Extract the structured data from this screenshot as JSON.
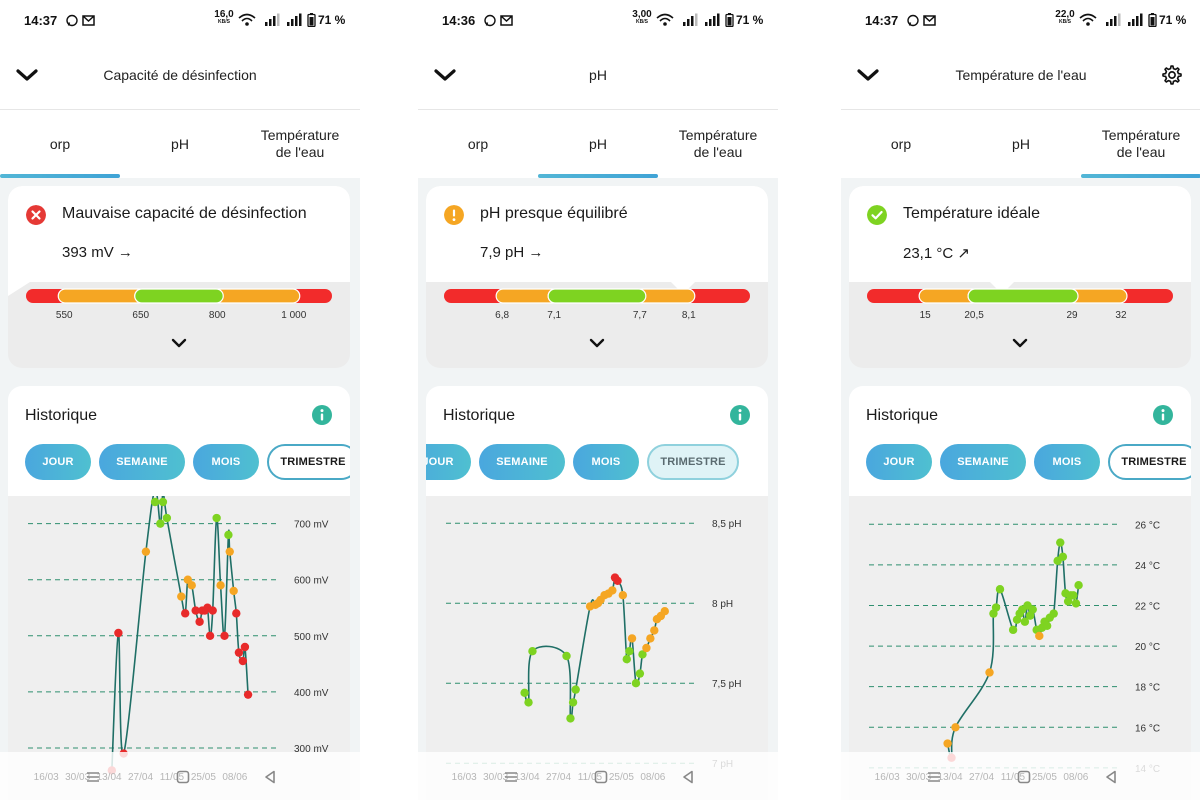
{
  "screens": [
    {
      "id": "orp",
      "status_bar": {
        "time": "14:37",
        "speed_value": "16,0",
        "speed_unit": "KB/S",
        "battery": "71 %"
      },
      "header": {
        "title": "Capacité de désinfection",
        "has_settings": false
      },
      "tabs": [
        {
          "label": "orp"
        },
        {
          "label": "pH"
        },
        {
          "label": "Température de l'eau"
        }
      ],
      "active_tab": 0,
      "status": {
        "level": "bad",
        "icon": "error-circle-icon",
        "color": "#e53935",
        "title": "Mauvaise capacité de désinfection",
        "value": "393 mV →",
        "pointer_pos": 0.0,
        "gauge": {
          "segments": [
            {
              "color": "#f22b2b",
              "w": 0.125
            },
            {
              "color": "#f5a623",
              "w": 0.25
            },
            {
              "color": "#7ed321",
              "w": 0.25
            },
            {
              "color": "#f5a623",
              "w": 0.25
            },
            {
              "color": "#f22b2b",
              "w": 0.125
            }
          ],
          "labels": [
            {
              "text": "550",
              "pos": 0.125
            },
            {
              "text": "650",
              "pos": 0.375
            },
            {
              "text": "800",
              "pos": 0.625
            },
            {
              "text": "1 000",
              "pos": 0.875
            }
          ]
        }
      },
      "history": {
        "title": "Historique",
        "pills": [
          {
            "label": "JOUR"
          },
          {
            "label": "SEMAINE"
          },
          {
            "label": "MOIS"
          },
          {
            "label": "TRIMESTRE"
          }
        ],
        "active_pill": 3,
        "active_style": "active",
        "pill_offset": 0
      },
      "chart_data": {
        "type": "scatter",
        "y_unit": "mV",
        "y_ticks": [
          {
            "v": 300,
            "label": "300 mV"
          },
          {
            "v": 400,
            "label": "400 mV"
          },
          {
            "v": 500,
            "label": "500 mV"
          },
          {
            "v": 600,
            "label": "600 mV"
          },
          {
            "v": 700,
            "label": "700 mV"
          }
        ],
        "ylim": [
          250,
          735
        ],
        "xlim": [
          0,
          100
        ],
        "x_ticks": [
          {
            "x": 10,
            "label": "16/03"
          },
          {
            "x": 22,
            "label": "30/03"
          },
          {
            "x": 34,
            "label": "13/04"
          },
          {
            "x": 46,
            "label": "27/04"
          },
          {
            "x": 58,
            "label": "11/05"
          },
          {
            "x": 70,
            "label": "25/05"
          },
          {
            "x": 82,
            "label": "08/06"
          }
        ],
        "thresholds": [
          {
            "max": 550,
            "color": "#e82a2a"
          },
          {
            "max": 650,
            "color": "#f5a623"
          },
          {
            "max": 800,
            "color": "#7ed321"
          }
        ],
        "points": [
          [
            32,
            260
          ],
          [
            34.5,
            505
          ],
          [
            36.5,
            290
          ],
          [
            45,
            650
          ],
          [
            48.5,
            760
          ],
          [
            50.5,
            700
          ],
          [
            51.5,
            755
          ],
          [
            53,
            710
          ],
          [
            58.5,
            570
          ],
          [
            60,
            540
          ],
          [
            61,
            600
          ],
          [
            62.5,
            590
          ],
          [
            64,
            545
          ],
          [
            65.5,
            525
          ],
          [
            66.5,
            545
          ],
          [
            67.5,
            545
          ],
          [
            68.5,
            550
          ],
          [
            69.5,
            500
          ],
          [
            70.5,
            545
          ],
          [
            72,
            710
          ],
          [
            73.5,
            590
          ],
          [
            75,
            500
          ],
          [
            76.5,
            680
          ],
          [
            77,
            650
          ],
          [
            78.5,
            580
          ],
          [
            79.5,
            540
          ],
          [
            80.5,
            470
          ],
          [
            82,
            455
          ],
          [
            82.8,
            480
          ],
          [
            84,
            395
          ]
        ]
      }
    },
    {
      "id": "ph",
      "status_bar": {
        "time": "14:36",
        "speed_value": "3,00",
        "speed_unit": "KB/S",
        "battery": "71 %"
      },
      "header": {
        "title": "pH",
        "has_settings": false
      },
      "tabs": [
        {
          "label": "orp"
        },
        {
          "label": "pH"
        },
        {
          "label": "Température de l'eau"
        }
      ],
      "active_tab": 1,
      "status": {
        "level": "warning",
        "icon": "warning-circle-icon",
        "color": "#f5a623",
        "title": "pH presque équilibré",
        "value": "7,9 pH →",
        "pointer_pos": 0.78,
        "gauge": {
          "segments": [
            {
              "color": "#f22b2b",
              "w": 0.19
            },
            {
              "color": "#f5a623",
              "w": 0.17
            },
            {
              "color": "#7ed321",
              "w": 0.28
            },
            {
              "color": "#f5a623",
              "w": 0.16
            },
            {
              "color": "#f22b2b",
              "w": 0.2
            }
          ],
          "labels": [
            {
              "text": "6,8",
              "pos": 0.19
            },
            {
              "text": "7,1",
              "pos": 0.36
            },
            {
              "text": "7,7",
              "pos": 0.64
            },
            {
              "text": "8,1",
              "pos": 0.8
            }
          ]
        }
      },
      "history": {
        "title": "Historique",
        "pills": [
          {
            "label": "JOUR"
          },
          {
            "label": "SEMAINE"
          },
          {
            "label": "MOIS"
          },
          {
            "label": "TRIMESTRE"
          }
        ],
        "active_pill": 3,
        "active_style": "active-faded",
        "pill_offset": -38
      },
      "chart_data": {
        "type": "scatter",
        "y_unit": "pH",
        "y_ticks": [
          {
            "v": 7.0,
            "label": "7 pH"
          },
          {
            "v": 7.5,
            "label": "7,5 pH"
          },
          {
            "v": 8.0,
            "label": "8 pH"
          },
          {
            "v": 8.5,
            "label": "8,5 pH"
          }
        ],
        "ylim": [
          6.92,
          8.62
        ],
        "xlim": [
          0,
          100
        ],
        "x_ticks": [
          {
            "x": 10,
            "label": "16/03"
          },
          {
            "x": 22,
            "label": "30/03"
          },
          {
            "x": 34,
            "label": "13/04"
          },
          {
            "x": 46,
            "label": "27/04"
          },
          {
            "x": 58,
            "label": "11/05"
          },
          {
            "x": 70,
            "label": "25/05"
          },
          {
            "x": 82,
            "label": "08/06"
          }
        ],
        "thresholds": [
          {
            "max": 7.1,
            "color": "#f5a623"
          },
          {
            "max": 7.7,
            "color": "#7ed321"
          },
          {
            "max": 8.1,
            "color": "#f5a623"
          },
          {
            "max": 99,
            "color": "#e82a2a"
          }
        ],
        "points": [
          [
            30,
            7.44
          ],
          [
            31.5,
            7.38
          ],
          [
            33,
            7.7
          ],
          [
            46,
            7.67
          ],
          [
            47.5,
            7.28
          ],
          [
            48.5,
            7.38
          ],
          [
            49.5,
            7.46
          ],
          [
            55,
            7.98
          ],
          [
            57,
            7.99
          ],
          [
            58,
            8.0
          ],
          [
            59,
            8.02
          ],
          [
            60.5,
            8.05
          ],
          [
            62,
            8.06
          ],
          [
            63.5,
            8.08
          ],
          [
            64.5,
            8.16
          ],
          [
            65.5,
            8.14
          ],
          [
            67.5,
            8.05
          ],
          [
            69,
            7.65
          ],
          [
            70,
            7.7
          ],
          [
            71,
            7.78
          ],
          [
            72.5,
            7.5
          ],
          [
            74,
            7.56
          ],
          [
            75,
            7.68
          ],
          [
            76.5,
            7.72
          ],
          [
            78,
            7.78
          ],
          [
            79.5,
            7.83
          ],
          [
            80.5,
            7.9
          ],
          [
            82,
            7.92
          ],
          [
            83.5,
            7.95
          ]
        ]
      }
    },
    {
      "id": "temp",
      "status_bar": {
        "time": "14:37",
        "speed_value": "22,0",
        "speed_unit": "KB/S",
        "battery": "71 %"
      },
      "header": {
        "title": "Température de l'eau",
        "has_settings": true
      },
      "tabs": [
        {
          "label": "orp"
        },
        {
          "label": "pH"
        },
        {
          "label": "Température de l'eau"
        }
      ],
      "active_tab": 2,
      "status": {
        "level": "good",
        "icon": "check-circle-icon",
        "color": "#7ed321",
        "title": "Température idéale",
        "value": "23,1 °C ↗",
        "pointer_pos": 0.44,
        "gauge": {
          "segments": [
            {
              "color": "#f22b2b",
              "w": 0.19
            },
            {
              "color": "#f5a623",
              "w": 0.16
            },
            {
              "color": "#7ed321",
              "w": 0.32
            },
            {
              "color": "#f5a623",
              "w": 0.16
            },
            {
              "color": "#f22b2b",
              "w": 0.17
            }
          ],
          "labels": [
            {
              "text": "15",
              "pos": 0.19
            },
            {
              "text": "20,5",
              "pos": 0.35
            },
            {
              "text": "29",
              "pos": 0.67
            },
            {
              "text": "32",
              "pos": 0.83
            }
          ]
        }
      },
      "history": {
        "title": "Historique",
        "pills": [
          {
            "label": "JOUR"
          },
          {
            "label": "SEMAINE"
          },
          {
            "label": "MOIS"
          },
          {
            "label": "TRIMESTRE"
          }
        ],
        "active_pill": 3,
        "active_style": "active",
        "pill_offset": 0
      },
      "chart_data": {
        "type": "scatter",
        "y_unit": "°C",
        "y_ticks": [
          {
            "v": 14,
            "label": "14 °C"
          },
          {
            "v": 16,
            "label": "16 °C"
          },
          {
            "v": 18,
            "label": "18 °C"
          },
          {
            "v": 20,
            "label": "20 °C"
          },
          {
            "v": 22,
            "label": "22 °C"
          },
          {
            "v": 24,
            "label": "24 °C"
          },
          {
            "v": 26,
            "label": "26 °C"
          }
        ],
        "ylim": [
          13.6,
          27.0
        ],
        "xlim": [
          0,
          100
        ],
        "x_ticks": [
          {
            "x": 10,
            "label": "16/03"
          },
          {
            "x": 22,
            "label": "30/03"
          },
          {
            "x": 34,
            "label": "13/04"
          },
          {
            "x": 46,
            "label": "27/04"
          },
          {
            "x": 58,
            "label": "11/05"
          },
          {
            "x": 70,
            "label": "25/05"
          },
          {
            "x": 82,
            "label": "08/06"
          }
        ],
        "thresholds": [
          {
            "max": 15,
            "color": "#e82a2a"
          },
          {
            "max": 20.5,
            "color": "#f5a623"
          },
          {
            "max": 29,
            "color": "#7ed321"
          }
        ],
        "points": [
          [
            30,
            15.2
          ],
          [
            31.5,
            14.5
          ],
          [
            33,
            16.0
          ],
          [
            46,
            18.7
          ],
          [
            47.5,
            21.6
          ],
          [
            48.5,
            21.9
          ],
          [
            50,
            22.8
          ],
          [
            55,
            20.8
          ],
          [
            56.5,
            21.3
          ],
          [
            57.5,
            21.6
          ],
          [
            58.5,
            21.8
          ],
          [
            59.5,
            21.2
          ],
          [
            60.5,
            22.0
          ],
          [
            61.5,
            21.5
          ],
          [
            62.5,
            21.8
          ],
          [
            64,
            20.8
          ],
          [
            65,
            20.5
          ],
          [
            66,
            20.9
          ],
          [
            67,
            21.2
          ],
          [
            68,
            21.0
          ],
          [
            69,
            21.4
          ],
          [
            70.5,
            21.6
          ],
          [
            72,
            24.2
          ],
          [
            73,
            25.1
          ],
          [
            74,
            24.4
          ],
          [
            75,
            22.6
          ],
          [
            76,
            22.2
          ],
          [
            77,
            22.5
          ],
          [
            78,
            22.5
          ],
          [
            79,
            22.1
          ],
          [
            80,
            23.0
          ]
        ]
      }
    }
  ]
}
